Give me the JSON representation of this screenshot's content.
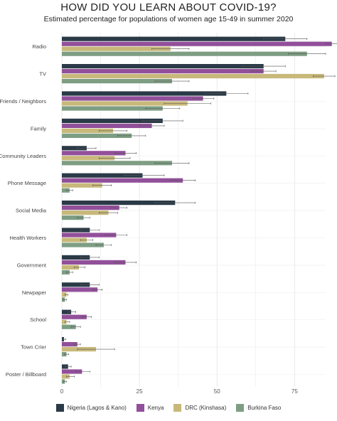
{
  "chart_data": {
    "type": "bar",
    "orientation": "horizontal",
    "title": "HOW DID YOU LEARN ABOUT COVID-19?",
    "subtitle": "Estimated percentage for populations of women age 15-49 in summer 2020",
    "categories": [
      "Radio",
      "TV",
      "Friends / Neighbors",
      "Family",
      "Community Leaders",
      "Phone Message",
      "Social Media",
      "Health Workers",
      "Government",
      "Newpaper",
      "School",
      "Town Crier",
      "Poster / Billboard"
    ],
    "xlim": [
      0,
      85
    ],
    "xticks": [
      0,
      25,
      50,
      75
    ],
    "grid": true,
    "legend_position": "bottom",
    "series": [
      {
        "name": "Nigeria (Lagos & Kano)",
        "color": "#2b3a47",
        "values": [
          72,
          65,
          53,
          32.5,
          8,
          26,
          36.5,
          9,
          9,
          9,
          3,
          0.7,
          2
        ],
        "err_low": [
          65,
          58,
          46,
          26,
          5,
          20,
          30,
          6,
          6,
          6,
          2,
          0.3,
          1
        ],
        "err_high": [
          79,
          72,
          60,
          39,
          11,
          33,
          43,
          12,
          12,
          12,
          4.5,
          1.3,
          3
        ]
      },
      {
        "name": "Kenya",
        "color": "#924f9a",
        "values": [
          87,
          65,
          45.5,
          29,
          20.5,
          39,
          18.5,
          17.5,
          20.5,
          11.5,
          8,
          5,
          6.5
        ],
        "err_low": [
          85,
          61,
          42,
          25,
          17,
          35,
          16,
          14,
          17,
          10,
          6.5,
          4,
          4.5
        ],
        "err_high": [
          89,
          69,
          49,
          33,
          24,
          43,
          21,
          21,
          24,
          13,
          9.5,
          6,
          9
        ]
      },
      {
        "name": "DRC (Kinshasa)",
        "color": "#c8b97a",
        "values": [
          35,
          84.5,
          40.5,
          16.5,
          17,
          13,
          15,
          8,
          5.5,
          1.5,
          1.5,
          11,
          2.5
        ],
        "err_low": [
          29,
          81,
          33,
          12,
          12,
          10,
          12,
          6,
          4,
          1,
          1,
          5,
          1.5
        ],
        "err_high": [
          41,
          88,
          48,
          21,
          22,
          16,
          18,
          10,
          7.5,
          2,
          2.5,
          17,
          4
        ]
      },
      {
        "name": "Burkina Faso",
        "color": "#7e9e84",
        "values": [
          79,
          35.5,
          32.5,
          22.5,
          35.5,
          2.5,
          7,
          13.5,
          2.5,
          1,
          4.5,
          1.5,
          1
        ],
        "err_low": [
          73,
          30,
          27,
          18,
          30,
          1.5,
          5,
          11,
          1.5,
          0.5,
          3,
          0.8,
          0.5
        ],
        "err_high": [
          85,
          41,
          38,
          27,
          41,
          3.5,
          9,
          16,
          3.5,
          1.5,
          6,
          2.2,
          1.5
        ]
      }
    ]
  }
}
